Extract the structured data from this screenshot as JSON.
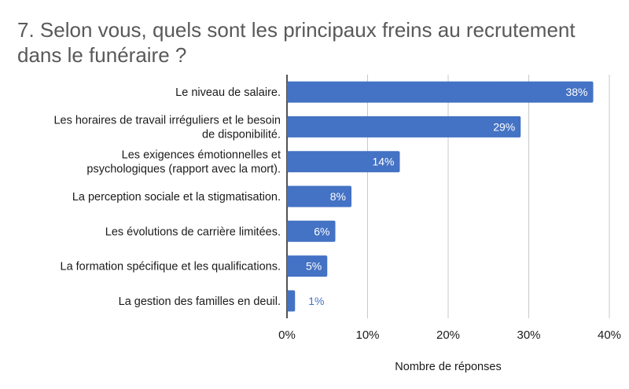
{
  "chart_data": {
    "type": "bar",
    "orientation": "horizontal",
    "title": "7. Selon vous, quels sont les principaux freins au recrutement dans le funéraire ?",
    "xlabel": "Nombre de réponses",
    "ylabel": "",
    "categories": [
      [
        "Le niveau de salaire."
      ],
      [
        "Les horaires de travail irréguliers et le besoin",
        "de disponibilité."
      ],
      [
        "Les exigences émotionnelles et",
        "psychologiques (rapport avec la mort)."
      ],
      [
        "La perception sociale et la stigmatisation."
      ],
      [
        "Les évolutions de carrière limitées."
      ],
      [
        "La formation spécifique et les qualifications."
      ],
      [
        "La gestion des familles en deuil."
      ]
    ],
    "values": [
      38,
      29,
      14,
      8,
      6,
      5,
      1
    ],
    "data_labels": [
      "38%",
      "29%",
      "14%",
      "8%",
      "6%",
      "5%",
      "1%"
    ],
    "xlim": [
      0,
      40
    ],
    "x_ticks": [
      0,
      10,
      20,
      30,
      40
    ],
    "x_tick_labels": [
      "0%",
      "10%",
      "20%",
      "30%",
      "40%"
    ],
    "grid": true,
    "legend": "none",
    "colors": {
      "bar": "#4472c4",
      "label_inside": "#ffffff",
      "label_outside": "#4472c4",
      "grid": "#c8c8c8",
      "axis": "#1a1a1a"
    }
  }
}
